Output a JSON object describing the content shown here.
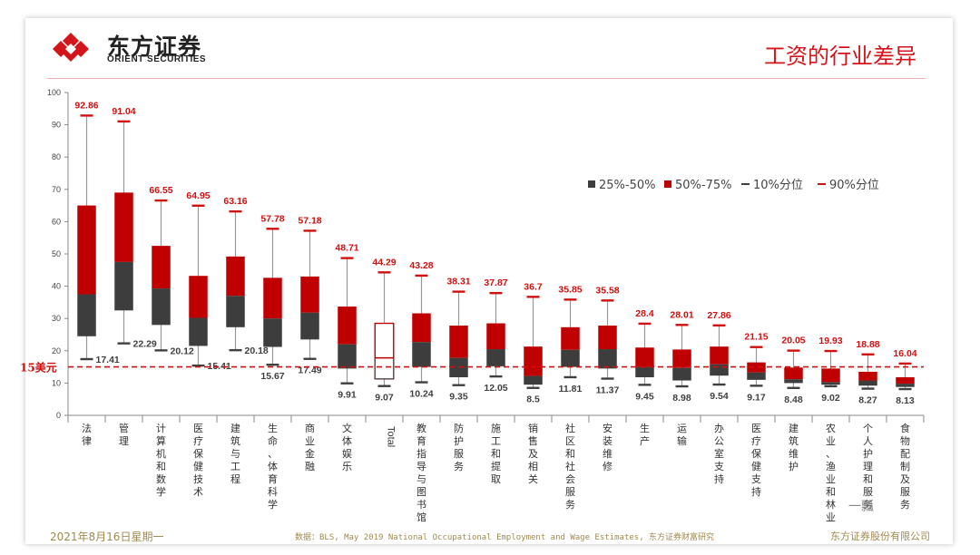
{
  "header": {
    "logo_cn": "东方证券",
    "logo_en": "ORIENT SECURITIES",
    "title": "工资的行业差异"
  },
  "footer": {
    "date": "2021年8月16日星期一",
    "source": "数据：BLS, May 2019 National Occupational Employment and Wage Estimates, 东方证券财富研究",
    "company": "东方证券股份有限公司",
    "watermark": "一瓢"
  },
  "chart_data": {
    "type": "box",
    "ylim": [
      0,
      100
    ],
    "yticks": [
      0,
      10,
      20,
      30,
      40,
      50,
      60,
      70,
      80,
      90,
      100
    ],
    "reference_line": {
      "value": 15,
      "label": "15美元"
    },
    "legend": {
      "placement": "top-right",
      "entries": [
        "25%-50%",
        "50%-75%",
        "10%分位",
        "90%分位"
      ]
    },
    "colors": {
      "lower": "#3d3d3d",
      "upper": "#c00000",
      "whisker_low": "#404040",
      "whisker_high": "#d01010",
      "ref": "#d01010",
      "label_red": "#d01010",
      "label_dark": "#404040"
    },
    "categories": [
      "法律",
      "管理",
      "计算机和数学",
      "医疗保健技术",
      "建筑与工程",
      "生命、体育科学",
      "商业金融",
      "文体娱乐",
      "Total",
      "教育指导与图书馆",
      "防护服务",
      "施工和提取",
      "销售及相关",
      "社区和社会服务",
      "安装维修",
      "生产",
      "运输",
      "办公室支持",
      "医疗保健支持",
      "建筑维护",
      "农业、渔业和林业",
      "个人护理和服务",
      "食物配制及服务"
    ],
    "p10": [
      17.41,
      22.29,
      20.12,
      15.41,
      20.18,
      15.67,
      17.49,
      9.91,
      9.07,
      10.24,
      9.35,
      12.05,
      8.5,
      11.81,
      11.37,
      9.45,
      8.98,
      9.54,
      9.17,
      8.48,
      9.02,
      8.27,
      8.13
    ],
    "p25": [
      24.5,
      32.5,
      28,
      21.5,
      27.3,
      21.2,
      23.5,
      14.5,
      11.3,
      15,
      11.8,
      15.2,
      9.5,
      15,
      14.5,
      11.8,
      10.8,
      12.3,
      11,
      10,
      9.5,
      9.2,
      8.8
    ],
    "p50": [
      37.5,
      47.5,
      39.3,
      30.2,
      37,
      30,
      31.8,
      22,
      17.8,
      22.7,
      17.8,
      20.5,
      12.2,
      20.3,
      20.5,
      15,
      14.7,
      15.8,
      13.3,
      11.2,
      10.3,
      10.8,
      9.8
    ],
    "p75": [
      65,
      69,
      52.5,
      43.2,
      49.2,
      42.6,
      43,
      33.7,
      28.5,
      31.6,
      27.8,
      28.5,
      21.3,
      27.3,
      27.8,
      21,
      20.4,
      21.3,
      16.4,
      14.8,
      14.5,
      13.5,
      11.8
    ],
    "p90": [
      92.86,
      91.04,
      66.55,
      64.95,
      63.16,
      57.78,
      57.18,
      48.71,
      44.29,
      43.28,
      38.31,
      37.87,
      36.7,
      35.85,
      35.58,
      28.4,
      28.01,
      27.86,
      21.15,
      20.05,
      19.93,
      18.88,
      16.04
    ],
    "p10_labels": [
      "17.41",
      "22.29",
      "20.12",
      "15.41",
      "20.18",
      "15.67",
      "17.49",
      "9.91",
      "9.07",
      "10.24",
      "9.35",
      "12.05",
      "8.5",
      "11.81",
      "11.37",
      "9.45",
      "8.98",
      "9.54",
      "9.17",
      "8.48",
      "9.02",
      "8.27",
      "8.13"
    ],
    "p90_labels": [
      "92.86",
      "91.04",
      "66.55",
      "64.95",
      "63.16",
      "57.78",
      "57.18",
      "48.71",
      "44.29",
      "43.28",
      "38.31",
      "37.87",
      "36.7",
      "35.85",
      "35.58",
      "28.4",
      "28.01",
      "27.86",
      "21.15",
      "20.05",
      "19.93",
      "18.88",
      "16.04"
    ],
    "highlight_category": "Total"
  }
}
